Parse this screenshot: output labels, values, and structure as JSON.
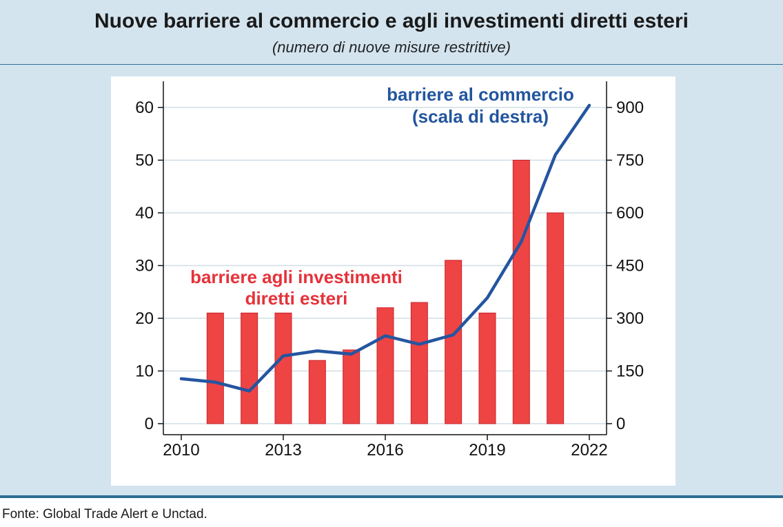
{
  "title": "Nuove barriere al commercio e agli investimenti diretti esteri",
  "subtitle": "(numero di nuove misure restrittive)",
  "source": "Fonte: Global Trade Alert e Unctad.",
  "colors": {
    "bars": "#ee4444",
    "line": "#2455a0",
    "panel": "#d3e4ef",
    "rule": "#2b6f93"
  },
  "chart_data": {
    "type": "bar",
    "x_ticks": [
      "2010",
      "2013",
      "2016",
      "2019",
      "2022"
    ],
    "x_range": [
      2010,
      2022
    ],
    "y_left": {
      "range": [
        0,
        65
      ],
      "ticks": [
        "0",
        "10",
        "20",
        "30",
        "40",
        "50",
        "60"
      ]
    },
    "y_right": {
      "range": [
        0,
        975
      ],
      "ticks": [
        "0",
        "150",
        "300",
        "450",
        "600",
        "750",
        "900"
      ]
    },
    "grid": true,
    "series": [
      {
        "name": "barriere agli investimenti diretti esteri",
        "type": "bar",
        "axis": "left",
        "x": [
          2011,
          2012,
          2013,
          2014,
          2015,
          2016,
          2017,
          2018,
          2019,
          2020,
          2021
        ],
        "values": [
          21,
          21,
          21,
          12,
          14,
          22,
          23,
          31,
          21,
          50,
          40
        ]
      },
      {
        "name": "barriere al commercio (scala di destra)",
        "type": "line",
        "axis": "right",
        "x": [
          2010,
          2011,
          2012,
          2013,
          2014,
          2015,
          2016,
          2017,
          2018,
          2019,
          2020,
          2021,
          2022
        ],
        "values": [
          128,
          118,
          93,
          193,
          207,
          198,
          250,
          226,
          253,
          358,
          518,
          765,
          906
        ]
      }
    ],
    "annotations": {
      "line_label_1": "barriere al commercio",
      "line_label_2": "(scala di destra)",
      "bar_label_1": "barriere agli investimenti",
      "bar_label_2": "diretti esteri"
    }
  }
}
